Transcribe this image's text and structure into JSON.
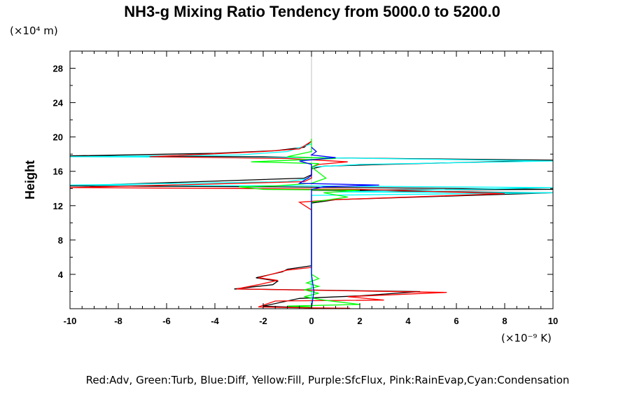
{
  "chart_data": {
    "type": "line",
    "title": "NH3-g Mixing Ratio Tendency from 5000.0 to 5200.0",
    "xlabel_unit": "(×10⁻⁹ K)",
    "ylabel": "Height",
    "ylabel_unit": "(×10⁴ m)",
    "xlim": [
      -10,
      10
    ],
    "ylim": [
      0,
      30
    ],
    "xticks": [
      -10,
      -8,
      -6,
      -4,
      -2,
      0,
      2,
      4,
      6,
      8,
      10
    ],
    "yticks": [
      4,
      8,
      12,
      16,
      20,
      24,
      28
    ],
    "legend_text": "Red:Adv, Green:Turb, Blue:Diff, Yellow:Fill, Purple:SfcFlux, Pink:RainEvap,Cyan:Condensation",
    "zero_line_color": "#c0c0c0",
    "series": [
      {
        "name": null,
        "color": "#000000",
        "points": [
          [
            0,
            19.5
          ],
          [
            -0.3,
            18.8
          ],
          [
            -1.5,
            18.4
          ],
          [
            -4,
            18.1
          ],
          [
            -10,
            17.8
          ],
          [
            -2,
            17.7
          ],
          [
            -0.3,
            17.6
          ],
          [
            10,
            17.3
          ],
          [
            3,
            16.8
          ],
          [
            0.5,
            16.6
          ],
          [
            0,
            16.3
          ],
          [
            0,
            15.6
          ],
          [
            -0.3,
            15.2
          ],
          [
            -10,
            14.3
          ],
          [
            -2,
            14.2
          ],
          [
            10,
            13.9
          ],
          [
            0,
            13.8
          ],
          [
            10,
            13.5
          ],
          [
            1,
            12.7
          ],
          [
            0,
            12.3
          ],
          [
            0,
            8
          ],
          [
            0,
            5
          ],
          [
            -1,
            4.6
          ],
          [
            -1.2,
            4.3
          ],
          [
            -2.3,
            3.6
          ],
          [
            -1.4,
            3.2
          ],
          [
            -1.6,
            2.8
          ],
          [
            -3.2,
            2.3
          ],
          [
            4.5,
            2
          ],
          [
            2,
            1.5
          ],
          [
            -0.5,
            1.2
          ],
          [
            -2,
            0.3
          ],
          [
            0,
            0.1
          ]
        ]
      },
      {
        "name": "Cyan:Condensation",
        "color": "#00ffff",
        "points": [
          [
            0,
            19.2
          ],
          [
            -1,
            18.3
          ],
          [
            -3,
            17.9
          ],
          [
            -10,
            17.7
          ],
          [
            0,
            17.6
          ],
          [
            10,
            17.2
          ],
          [
            2,
            16.8
          ],
          [
            0,
            16.5
          ],
          [
            0,
            15.2
          ],
          [
            -1,
            14.8
          ],
          [
            -10,
            14.4
          ],
          [
            0,
            14.3
          ],
          [
            10,
            14.1
          ],
          [
            1,
            13.6
          ],
          [
            10,
            13.5
          ],
          [
            0,
            13.2
          ],
          [
            0,
            0
          ]
        ]
      },
      {
        "name": "Red:Adv",
        "color": "#ff0000",
        "points": [
          [
            0,
            19.5
          ],
          [
            -0.5,
            18.6
          ],
          [
            -2,
            18.3
          ],
          [
            -6.7,
            17.7
          ],
          [
            -1,
            17.5
          ],
          [
            1.5,
            17.1
          ],
          [
            0.3,
            16.8
          ],
          [
            0,
            16.5
          ],
          [
            0,
            15.2
          ],
          [
            -0.3,
            14.8
          ],
          [
            -10,
            14.1
          ],
          [
            -3,
            14.0
          ],
          [
            2,
            13.9
          ],
          [
            8,
            13.4
          ],
          [
            1,
            12.7
          ],
          [
            0,
            12.5
          ],
          [
            -0.5,
            12.4
          ],
          [
            0,
            11.5
          ],
          [
            0,
            7.8
          ],
          [
            0,
            4.8
          ],
          [
            -1,
            4.5
          ],
          [
            -2.2,
            3.6
          ],
          [
            -1.4,
            3.3
          ],
          [
            -2.2,
            2.8
          ],
          [
            -3.1,
            2.3
          ],
          [
            5.6,
            1.9
          ],
          [
            1.5,
            1.4
          ],
          [
            3,
            1
          ],
          [
            -1.5,
            0.9
          ],
          [
            -2.2,
            0.2
          ],
          [
            0,
            0.1
          ],
          [
            1.6,
            0.05
          ]
        ]
      },
      {
        "name": "Green:Turb",
        "color": "#00ff00",
        "points": [
          [
            0,
            19.8
          ],
          [
            0,
            18.3
          ],
          [
            -1,
            17.7
          ],
          [
            1,
            17.5
          ],
          [
            -2.5,
            17.1
          ],
          [
            0.3,
            16.9
          ],
          [
            0,
            16.5
          ],
          [
            0.6,
            15.2
          ],
          [
            0,
            14.6
          ],
          [
            -1.5,
            14.3
          ],
          [
            -3,
            14.2
          ],
          [
            -2,
            13.9
          ],
          [
            2,
            13.8
          ],
          [
            0.5,
            13.5
          ],
          [
            1.5,
            13
          ],
          [
            0,
            12.4
          ],
          [
            0,
            8
          ],
          [
            0,
            4
          ],
          [
            0.3,
            3.5
          ],
          [
            -0.2,
            3.0
          ],
          [
            0.3,
            2.6
          ],
          [
            -0.3,
            2.2
          ],
          [
            0.3,
            1.8
          ],
          [
            -0.3,
            1.4
          ],
          [
            0.5,
            1.0
          ],
          [
            2,
            0.5
          ],
          [
            -1,
            0.3
          ],
          [
            0,
            0.2
          ]
        ]
      },
      {
        "name": "Blue:Diff",
        "color": "#0000ff",
        "points": [
          [
            0,
            18.8
          ],
          [
            0.2,
            18.3
          ],
          [
            0,
            17.9
          ],
          [
            1,
            17.6
          ],
          [
            -0.5,
            17.2
          ],
          [
            0,
            16.8
          ],
          [
            0,
            15.5
          ],
          [
            -0.5,
            14.6
          ],
          [
            2.8,
            14.4
          ],
          [
            0.5,
            14.2
          ],
          [
            0,
            13.9
          ],
          [
            0,
            13.2
          ],
          [
            0,
            4
          ],
          [
            0.1,
            2
          ],
          [
            0,
            0.1
          ]
        ]
      }
    ]
  }
}
